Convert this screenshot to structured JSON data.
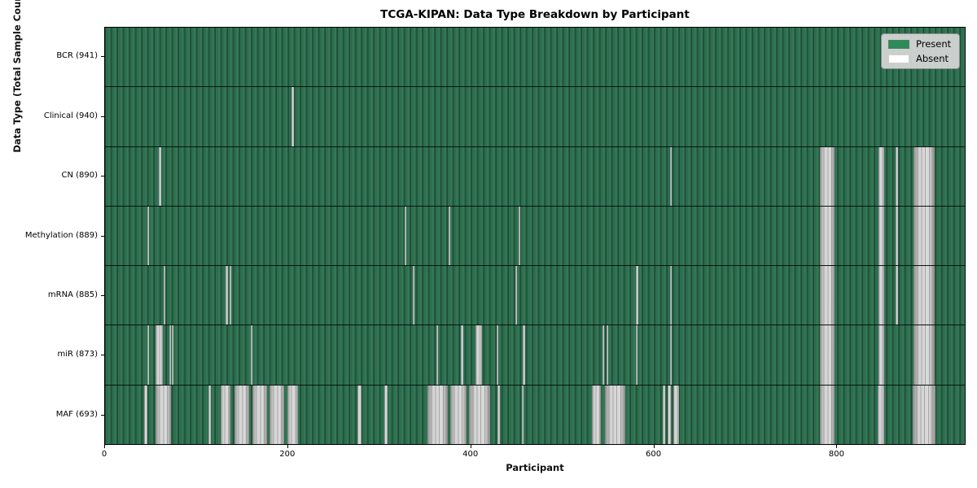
{
  "chart_data": {
    "type": "heatmap",
    "title": "TCGA-KIPAN: Data Type Breakdown by Participant",
    "xlabel": "Participant",
    "ylabel": "Data Type (Total Sample Count)",
    "xlim": [
      0,
      941
    ],
    "xticks": [
      0,
      200,
      400,
      600,
      800
    ],
    "grid": false,
    "legend_position": "upper right",
    "colors": {
      "present": "#2e8b57",
      "absent": "#ffffff"
    },
    "legend": [
      {
        "label": "Present",
        "color": "#2e8b57"
      },
      {
        "label": "Absent",
        "color": "#ffffff"
      }
    ],
    "rows": [
      {
        "label": "BCR (941)",
        "data_type": "BCR",
        "total_sample_count": 941,
        "absent_ranges": []
      },
      {
        "label": "Clinical (940)",
        "data_type": "Clinical",
        "total_sample_count": 940,
        "absent_ranges": [
          [
            204,
            206
          ]
        ]
      },
      {
        "label": "CN (890)",
        "data_type": "CN",
        "total_sample_count": 890,
        "absent_ranges": [
          [
            59,
            61
          ],
          [
            617,
            619
          ],
          [
            781,
            797
          ],
          [
            845,
            851
          ],
          [
            864,
            866
          ],
          [
            883,
            906
          ]
        ]
      },
      {
        "label": "Methylation (889)",
        "data_type": "Methylation",
        "total_sample_count": 889,
        "absent_ranges": [
          [
            46,
            48
          ],
          [
            327,
            329
          ],
          [
            375,
            377
          ],
          [
            452,
            454
          ],
          [
            781,
            797
          ],
          [
            845,
            851
          ],
          [
            864,
            866
          ],
          [
            883,
            906
          ]
        ]
      },
      {
        "label": "mRNA (885)",
        "data_type": "mRNA",
        "total_sample_count": 885,
        "absent_ranges": [
          [
            64,
            66
          ],
          [
            132,
            134
          ],
          [
            136,
            138
          ],
          [
            336,
            338
          ],
          [
            448,
            450
          ],
          [
            580,
            583
          ],
          [
            617,
            619
          ],
          [
            781,
            797
          ],
          [
            845,
            851
          ],
          [
            864,
            866
          ],
          [
            883,
            906
          ]
        ]
      },
      {
        "label": "miR (873)",
        "data_type": "miR",
        "total_sample_count": 873,
        "absent_ranges": [
          [
            46,
            48
          ],
          [
            55,
            63
          ],
          [
            70,
            72
          ],
          [
            73,
            75
          ],
          [
            159,
            161
          ],
          [
            362,
            364
          ],
          [
            389,
            391
          ],
          [
            405,
            412
          ],
          [
            428,
            430
          ],
          [
            456,
            459
          ],
          [
            543,
            545
          ],
          [
            548,
            550
          ],
          [
            580,
            582
          ],
          [
            617,
            619
          ],
          [
            781,
            797
          ],
          [
            845,
            851
          ],
          [
            883,
            906
          ]
        ]
      },
      {
        "label": "MAF (693)",
        "data_type": "MAF",
        "total_sample_count": 693,
        "absent_ranges": [
          [
            43,
            46
          ],
          [
            55,
            72
          ],
          [
            113,
            116
          ],
          [
            126,
            137
          ],
          [
            141,
            157
          ],
          [
            161,
            177
          ],
          [
            180,
            196
          ],
          [
            199,
            211
          ],
          [
            276,
            280
          ],
          [
            305,
            309
          ],
          [
            352,
            374
          ],
          [
            377,
            395
          ],
          [
            398,
            421
          ],
          [
            429,
            431
          ],
          [
            455,
            457
          ],
          [
            532,
            542
          ],
          [
            546,
            568
          ],
          [
            609,
            612
          ],
          [
            615,
            618
          ],
          [
            621,
            627
          ],
          [
            781,
            797
          ],
          [
            844,
            851
          ],
          [
            882,
            907
          ]
        ]
      }
    ]
  }
}
